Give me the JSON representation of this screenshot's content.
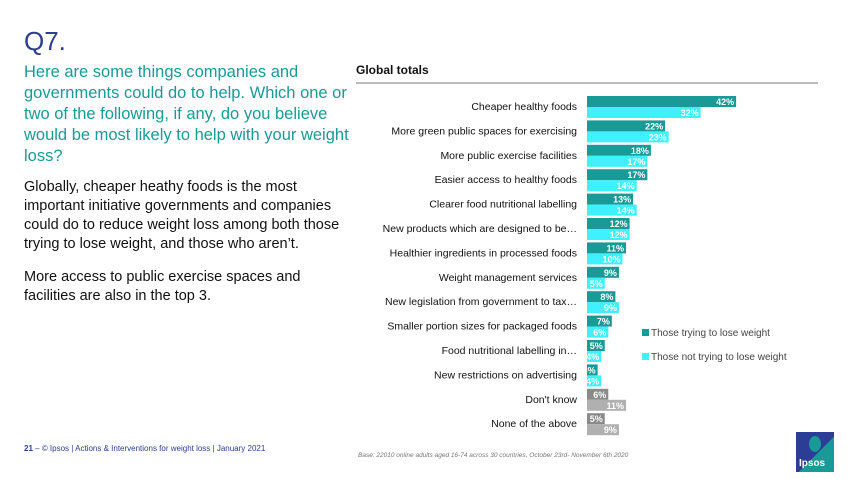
{
  "slide": {
    "question_number": "Q7.",
    "question": "Here are some things companies and governments could do to help. Which one or two of the following, if any, do you believe would be most likely to help with your weight loss?",
    "summary": [
      "Globally, cheaper heathy foods is the most important initiative governments and companies could do to reduce weight loss among both those trying to lose weight, and those who aren’t.",
      "More access to public exercise spaces and facilities are also in the top 3."
    ],
    "footer_page": "21",
    "footer_text": "– © Ipsos | Actions & Interventions for weight loss | January 2021",
    "base_note": "Base: 22010 online adults aged 16-74 across 30 countries, October 23rd- November 6th 2020",
    "logo_text": "Ipsos"
  },
  "colors": {
    "trying": "#1a9a96",
    "not_trying": "#3ff0ff",
    "trying_gray": "#8a8a8a",
    "not_trying_gray": "#b0b0b0"
  },
  "chart_data": {
    "type": "bar",
    "orientation": "horizontal",
    "title": "Global totals",
    "categories": [
      "Cheaper healthy foods",
      "More green public spaces for exercising",
      "More public exercise facilities",
      "Easier access to healthy foods",
      "Clearer food nutritional labelling",
      "New products which are designed to be…",
      "Healthier ingredients in processed foods",
      "Weight management services",
      "New legislation from government to tax…",
      "Smaller portion sizes for packaged foods",
      "Food nutritional labelling in…",
      "New restrictions on advertising",
      "Don't know",
      "None of the above"
    ],
    "series": [
      {
        "name": "Those trying to lose weight",
        "values": [
          42,
          22,
          18,
          17,
          13,
          12,
          11,
          9,
          8,
          7,
          5,
          3,
          6,
          5
        ]
      },
      {
        "name": "Those not trying to lose weight",
        "values": [
          32,
          23,
          17,
          14,
          14,
          12,
          10,
          5,
          9,
          6,
          4,
          4,
          11,
          9
        ]
      }
    ],
    "gray_categories": [
      "Don't know",
      "None of the above"
    ],
    "value_suffix": "%",
    "legend": "right",
    "xlim": [
      0,
      45
    ],
    "grid": false
  }
}
